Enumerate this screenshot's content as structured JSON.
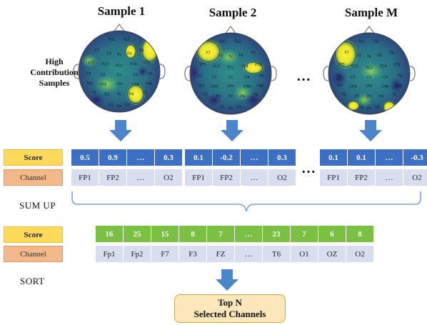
{
  "samples": [
    {
      "title": "Sample 1"
    },
    {
      "title": "Sample 2"
    },
    {
      "title": "Sample M"
    }
  ],
  "side_label": [
    "High",
    "Contribution",
    "Samples"
  ],
  "electrode_labels": [
    "Fp1",
    "Fp2",
    "F7",
    "F3",
    "Fz",
    "F4",
    "F8",
    "FC3",
    "FCz",
    "FC4",
    "T3",
    "C3",
    "Cz",
    "C4",
    "T4",
    "CP3",
    "CPz",
    "CP4",
    "T5",
    "P3",
    "Pz",
    "P4",
    "T6",
    "O1",
    "Oz",
    "O2",
    "FT7",
    "FT8",
    "TP7",
    "TP8"
  ],
  "ellipsis": "…",
  "score_label": "Score",
  "channel_label": "Channel",
  "sample_tables": [
    {
      "scores": [
        "0.5",
        "0.9",
        "…",
        "0.3"
      ],
      "channels": [
        "FP1",
        "FP2",
        "…",
        "O2"
      ]
    },
    {
      "scores": [
        "0.1",
        "-0.2",
        "…",
        "0.3"
      ],
      "channels": [
        "FP1",
        "FP2",
        "…",
        "O2"
      ]
    },
    {
      "scores": [
        "0.1",
        "0.1",
        "…",
        "-0.3"
      ],
      "channels": [
        "FP1",
        "FP2",
        "…",
        "O2"
      ]
    }
  ],
  "sum_label": "SUM UP",
  "sum_table": {
    "scores": [
      "16",
      "25",
      "15",
      "8",
      "7",
      "…",
      "23",
      "7",
      "6",
      "8"
    ],
    "channels": [
      "Fp1",
      "Fp2",
      "F7",
      "F3",
      "FZ",
      "…",
      "T6",
      "O1",
      "OZ",
      "O2"
    ]
  },
  "sort_label": "SORT",
  "result": {
    "line1": "Top N",
    "line2": "Selected Channels"
  },
  "colors": {
    "blue": "#3d6fc2",
    "green": "#7ac143",
    "light": "#d8def0",
    "arrow": "#4a86c9",
    "bracket": "#7aa3d6"
  }
}
